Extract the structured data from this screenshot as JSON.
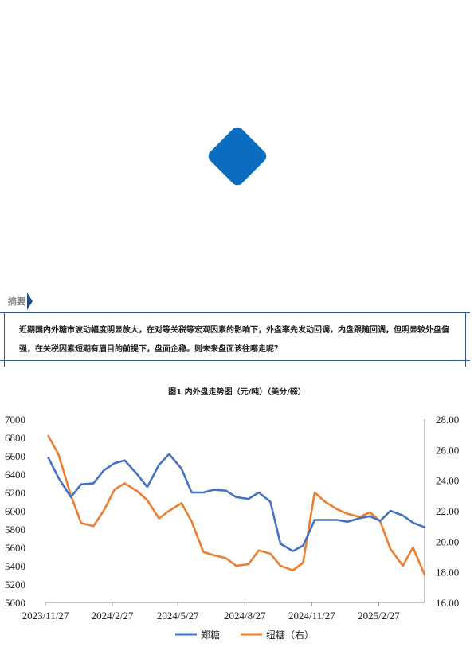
{
  "logo_icon": "blue-diamond-logo",
  "brand_color": "#0b6dbf",
  "abstract": {
    "label": "摘要",
    "text": "近期国内外糖市波动幅度明显放大，在对等关税等宏观因素的影响下，外盘率先发动回调，内盘跟随回调，但明显较外盘偏强，在关税因素短期有眉目的前提下，盘面企稳。则未来盘面该往哪走呢？"
  },
  "chart_data": {
    "type": "line",
    "title": "图1 内外盘走势图（元/吨）（美分/磅）",
    "x_tick_labels": [
      "2023/11/27",
      "2024/2/27",
      "2024/5/27",
      "2024/8/27",
      "2024/11/27",
      "2025/2/27"
    ],
    "x": [
      "2023/12/1",
      "2023/12/15",
      "2024/1/1",
      "2024/1/15",
      "2024/2/1",
      "2024/2/15",
      "2024/3/1",
      "2024/3/15",
      "2024/4/1",
      "2024/4/15",
      "2024/5/1",
      "2024/5/15",
      "2024/6/1",
      "2024/6/15",
      "2024/7/1",
      "2024/7/15",
      "2024/8/1",
      "2024/8/15",
      "2024/9/1",
      "2024/9/15",
      "2024/10/1",
      "2024/10/15",
      "2024/11/1",
      "2024/11/15",
      "2024/12/1",
      "2024/12/15",
      "2025/1/1",
      "2025/1/15",
      "2025/2/1",
      "2025/2/15",
      "2025/3/1",
      "2025/3/15",
      "2025/4/1",
      "2025/4/15",
      "2025/5/1"
    ],
    "y_left_range": [
      5000,
      7000
    ],
    "y_left_ticks": [
      "5000",
      "5200",
      "5400",
      "5600",
      "5800",
      "6000",
      "6200",
      "6400",
      "6600",
      "6800",
      "7000"
    ],
    "y_right_range": [
      16,
      28
    ],
    "y_right_ticks": [
      "16.00",
      "18.00",
      "20.00",
      "22.00",
      "24.00",
      "26.00",
      "28.00"
    ],
    "series": [
      {
        "name": "郑糖",
        "axis": "left",
        "color": "#4472c4",
        "values": [
          6580,
          6360,
          6150,
          6290,
          6300,
          6440,
          6520,
          6550,
          6400,
          6260,
          6500,
          6620,
          6460,
          6200,
          6200,
          6230,
          6220,
          6150,
          6130,
          6200,
          6100,
          5640,
          5560,
          5620,
          5900,
          5900,
          5900,
          5880,
          5920,
          5940,
          5890,
          6000,
          5950,
          5870,
          5820
        ]
      },
      {
        "name": "纽糖（右）",
        "axis": "right",
        "color": "#ed7d31",
        "values": [
          26.9,
          25.7,
          23.0,
          21.2,
          21.0,
          22.0,
          23.4,
          23.8,
          23.3,
          22.7,
          21.5,
          22.0,
          22.5,
          21.3,
          19.3,
          19.1,
          18.9,
          18.4,
          18.5,
          19.4,
          19.2,
          18.4,
          18.1,
          18.6,
          23.2,
          22.6,
          22.1,
          21.8,
          21.6,
          21.9,
          21.3,
          19.5,
          18.4,
          19.6,
          17.8
        ]
      }
    ],
    "legend_position": "bottom",
    "grid": false
  }
}
